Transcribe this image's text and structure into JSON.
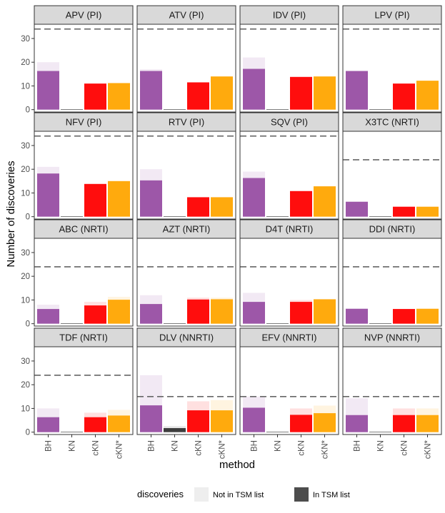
{
  "chart_data": {
    "type": "bar",
    "xlabel": "method",
    "ylabel": "Number of discoveries",
    "ylim": [
      -1,
      36
    ],
    "yticks": [
      0,
      10,
      20,
      30
    ],
    "categories": [
      "BH",
      "KN",
      "cKN",
      "cKN*"
    ],
    "category_labels": [
      "BH",
      "KN",
      "cKN",
      "cKN*"
    ],
    "method_colors": {
      "BH": "#984ea3",
      "KN": "#333333",
      "cKN": "#ff0000",
      "cKN*": "#ffa500"
    },
    "legend": {
      "title": "discoveries",
      "entries": [
        {
          "label": "Not in TSM list",
          "color": "#eeeeee"
        },
        {
          "label": "In TSM list",
          "color": "#4d4d4d"
        }
      ]
    },
    "panels": [
      {
        "label": "APV (PI)",
        "dashed_line": 34,
        "total": [
          20,
          0.2,
          11,
          11.2
        ],
        "in_tsm": [
          16.3,
          0.2,
          11,
          11.2
        ]
      },
      {
        "label": "ATV (PI)",
        "dashed_line": 34,
        "total": [
          17,
          0.2,
          11.5,
          14
        ],
        "in_tsm": [
          16.3,
          0.2,
          11.5,
          14
        ]
      },
      {
        "label": "IDV (PI)",
        "dashed_line": 34,
        "total": [
          22,
          0.2,
          13.8,
          14
        ],
        "in_tsm": [
          17.2,
          0.2,
          13.8,
          14
        ]
      },
      {
        "label": "LPV (PI)",
        "dashed_line": 34,
        "total": [
          16.3,
          0.2,
          11,
          12.2
        ],
        "in_tsm": [
          16.3,
          0.2,
          11,
          12.2
        ]
      },
      {
        "label": "NFV (PI)",
        "dashed_line": 34,
        "total": [
          21,
          0.2,
          13.8,
          15
        ],
        "in_tsm": [
          18.2,
          0.2,
          13.8,
          15
        ]
      },
      {
        "label": "RTV (PI)",
        "dashed_line": 34,
        "total": [
          20,
          0.2,
          8.2,
          8.2
        ],
        "in_tsm": [
          15.3,
          0.2,
          8.2,
          8.2
        ]
      },
      {
        "label": "SQV (PI)",
        "dashed_line": 34,
        "total": [
          19,
          0.2,
          10.8,
          12.8
        ],
        "in_tsm": [
          16.3,
          0.2,
          10.8,
          12.8
        ]
      },
      {
        "label": "X3TC (NRTI)",
        "dashed_line": 24,
        "total": [
          6.3,
          0.2,
          4.2,
          4.2
        ],
        "in_tsm": [
          6.3,
          0.2,
          4.2,
          4.2
        ]
      },
      {
        "label": "ABC (NRTI)",
        "dashed_line": 24,
        "total": [
          8,
          0.2,
          9.2,
          11.3
        ],
        "in_tsm": [
          6.2,
          0.2,
          7.7,
          10.1
        ]
      },
      {
        "label": "AZT (NRTI)",
        "dashed_line": 24,
        "total": [
          12,
          0.2,
          11,
          11
        ],
        "in_tsm": [
          8.3,
          0.2,
          10.2,
          10.3
        ]
      },
      {
        "label": "D4T (NRTI)",
        "dashed_line": 24,
        "total": [
          13,
          0.2,
          10,
          10.3
        ],
        "in_tsm": [
          9.2,
          0.2,
          9.2,
          10.3
        ]
      },
      {
        "label": "DDI (NRTI)",
        "dashed_line": 24,
        "total": [
          6.3,
          0.2,
          6.2,
          6.3
        ],
        "in_tsm": [
          6.3,
          0.2,
          6.2,
          6.3
        ]
      },
      {
        "label": "TDF (NRTI)",
        "dashed_line": 24,
        "total": [
          10,
          0.2,
          8.2,
          9.4
        ],
        "in_tsm": [
          6.3,
          0.2,
          6.3,
          7
        ]
      },
      {
        "label": "DLV (NNRTI)",
        "dashed_line": 15,
        "total": [
          24,
          2.5,
          13,
          13.5
        ],
        "in_tsm": [
          11.3,
          1.7,
          9.2,
          9.2
        ]
      },
      {
        "label": "EFV (NNRTI)",
        "dashed_line": 15,
        "total": [
          15,
          0.2,
          10,
          11.2
        ],
        "in_tsm": [
          10.3,
          0.2,
          7.3,
          8
        ]
      },
      {
        "label": "NVP (NNRTI)",
        "dashed_line": 15,
        "total": [
          14.3,
          0.2,
          10,
          10
        ],
        "in_tsm": [
          7.2,
          0.2,
          7.2,
          7.2
        ]
      }
    ]
  }
}
